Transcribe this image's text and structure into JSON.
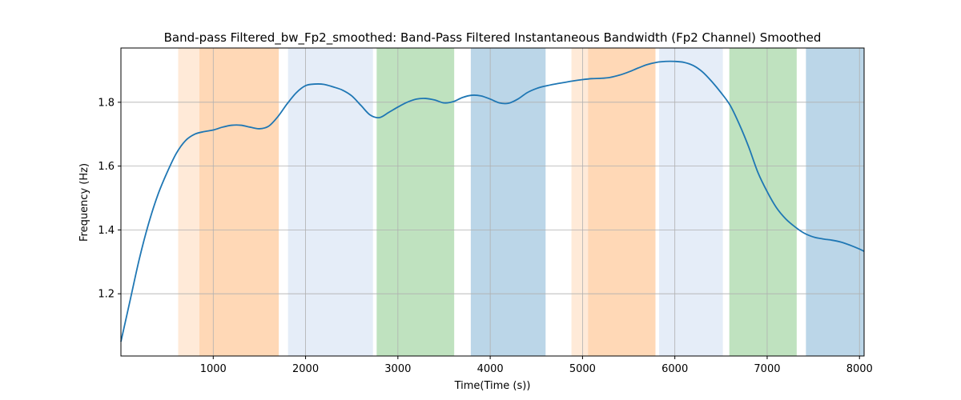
{
  "chart_data": {
    "type": "line",
    "title": "Band-pass Filtered_bw_Fp2_smoothed: Band-Pass Filtered Instantaneous Bandwidth (Fp2 Channel) Smoothed",
    "xlabel": "Time(Time (s))",
    "ylabel": "Frequency (Hz)",
    "xlim": [
      0,
      8050
    ],
    "ylim": [
      1.005,
      1.97
    ],
    "x_ticks": [
      1000,
      2000,
      3000,
      4000,
      5000,
      6000,
      7000,
      8000
    ],
    "y_ticks": [
      1.2,
      1.4,
      1.6,
      1.8
    ],
    "grid": true,
    "line_color": "#1f77b4",
    "series": [
      {
        "x": [
          0,
          100,
          200,
          300,
          400,
          500,
          600,
          700,
          800,
          900,
          1000,
          1100,
          1200,
          1300,
          1400,
          1500,
          1600,
          1700,
          1800,
          1900,
          2000,
          2100,
          2200,
          2300,
          2400,
          2500,
          2600,
          2700,
          2800,
          2900,
          3000,
          3100,
          3200,
          3300,
          3400,
          3500,
          3600,
          3700,
          3800,
          3900,
          4000,
          4100,
          4200,
          4300,
          4400,
          4500,
          4600,
          4700,
          4800,
          4900,
          5000,
          5100,
          5200,
          5300,
          5400,
          5500,
          5600,
          5700,
          5800,
          5900,
          6000,
          6100,
          6200,
          6300,
          6400,
          6500,
          6600,
          6700,
          6800,
          6900,
          7000,
          7100,
          7200,
          7300,
          7400,
          7500,
          7600,
          7700,
          7800,
          7900,
          8000,
          8050
        ],
        "y": [
          1.05,
          1.18,
          1.31,
          1.42,
          1.51,
          1.58,
          1.64,
          1.68,
          1.7,
          1.708,
          1.713,
          1.722,
          1.728,
          1.728,
          1.722,
          1.717,
          1.725,
          1.755,
          1.795,
          1.83,
          1.852,
          1.857,
          1.856,
          1.848,
          1.838,
          1.82,
          1.79,
          1.76,
          1.752,
          1.768,
          1.785,
          1.8,
          1.81,
          1.812,
          1.807,
          1.798,
          1.802,
          1.815,
          1.822,
          1.82,
          1.81,
          1.798,
          1.797,
          1.81,
          1.83,
          1.843,
          1.851,
          1.857,
          1.862,
          1.867,
          1.871,
          1.874,
          1.875,
          1.878,
          1.885,
          1.895,
          1.907,
          1.918,
          1.925,
          1.928,
          1.928,
          1.925,
          1.915,
          1.895,
          1.865,
          1.83,
          1.79,
          1.73,
          1.66,
          1.58,
          1.52,
          1.47,
          1.435,
          1.41,
          1.39,
          1.378,
          1.372,
          1.368,
          1.362,
          1.352,
          1.34,
          1.333
        ]
      }
    ],
    "bands": [
      {
        "start": 620,
        "end": 850,
        "color": "#ff7f0e",
        "opacity": 0.16
      },
      {
        "start": 850,
        "end": 1710,
        "color": "#ff7f0e",
        "opacity": 0.3
      },
      {
        "start": 1810,
        "end": 2730,
        "color": "#aec7e8",
        "opacity": 0.32
      },
      {
        "start": 2770,
        "end": 3610,
        "color": "#2ca02c",
        "opacity": 0.3
      },
      {
        "start": 3790,
        "end": 4600,
        "color": "#1f77b4",
        "opacity": 0.3
      },
      {
        "start": 4880,
        "end": 5060,
        "color": "#ff7f0e",
        "opacity": 0.16
      },
      {
        "start": 5060,
        "end": 5790,
        "color": "#ff7f0e",
        "opacity": 0.3
      },
      {
        "start": 5830,
        "end": 6520,
        "color": "#aec7e8",
        "opacity": 0.32
      },
      {
        "start": 6590,
        "end": 7320,
        "color": "#2ca02c",
        "opacity": 0.3
      },
      {
        "start": 7420,
        "end": 8050,
        "color": "#1f77b4",
        "opacity": 0.3
      }
    ]
  }
}
